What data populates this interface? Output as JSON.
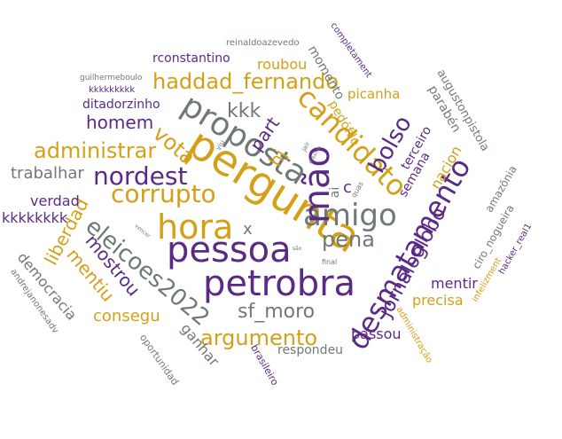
{
  "palette": {
    "purple": "#5b2a86",
    "gold": "#d4a017",
    "gray": "#6f7a78"
  },
  "words": {
    "pergunta": "pergunta",
    "petrobra": "petrobra",
    "pessoa": "pessoa",
    "hora": "hora",
    "amigo": "amigo",
    "mao": "mão",
    "proposta": "proposta",
    "candidato": "candidato",
    "desmatamento": "desmatamento",
    "corrupto": "corrupto",
    "eleicoes2022": "eleicoes2022",
    "jornaloglobo": "jornaloglobo",
    "nordest": "nordest",
    "haddad_fernando": "haddad_fernando",
    "administrar": "administrar",
    "argumento": "argumento",
    "sf_moro": "sf_moro",
    "pena": "pena",
    "bolso": "bolso",
    "vota": "vota",
    "kkk": "kkk",
    "homem": "homem",
    "liberdad": "liberdad",
    "mostrou": "mostrou",
    "mentiu": "mentiu",
    "consegu": "consegu",
    "trabalhar": "trabalhar",
    "democracia": "democracia",
    "part": "part",
    "hj": "hj",
    "roubou": "roubou",
    "rconstantino": "rconstantino",
    "ditadorzinho": "ditadorzinho",
    "verdad": "verdad",
    "kkkkkkkk": "kkkkkkkk",
    "kkkkkkkkk": "kkkkkkkkk",
    "guilhermeboulo": "guilhermeboulo",
    "reinaldoazevedo": "reinaldoazevedo",
    "momento": "momento",
    "completament": "completament",
    "picanha": "picanha",
    "pedofilo": "pedófilo",
    "parabem": "parabén",
    "augustonpistola": "augustonpistola",
    "terceiro": "terceiro",
    "semana": "semana",
    "nacion": "nacion",
    "amazonia": "amazônia",
    "ciro_nogueira": "ciro_nogueira",
    "hacker_real1": "hacker_real1",
    "infelizment": "infelizment",
    "mentir": "mentir",
    "precisa": "precisa",
    "passou": "passou",
    "respondeu": "respondeu",
    "administracao": "administração",
    "brasileiro": "brasileiro",
    "ganhar": "ganhar",
    "oportunidad": "oportunidad",
    "andrejanonesadv": "andrejanonesadv",
    "x": "x",
    "ai": "ai",
    "c": "c",
    "final": "final",
    "quas": "quas",
    "viu": "viu",
    "jair": "jair",
    "sao": "são",
    "vencer": "vencer",
    "mesma": "mesma"
  }
}
